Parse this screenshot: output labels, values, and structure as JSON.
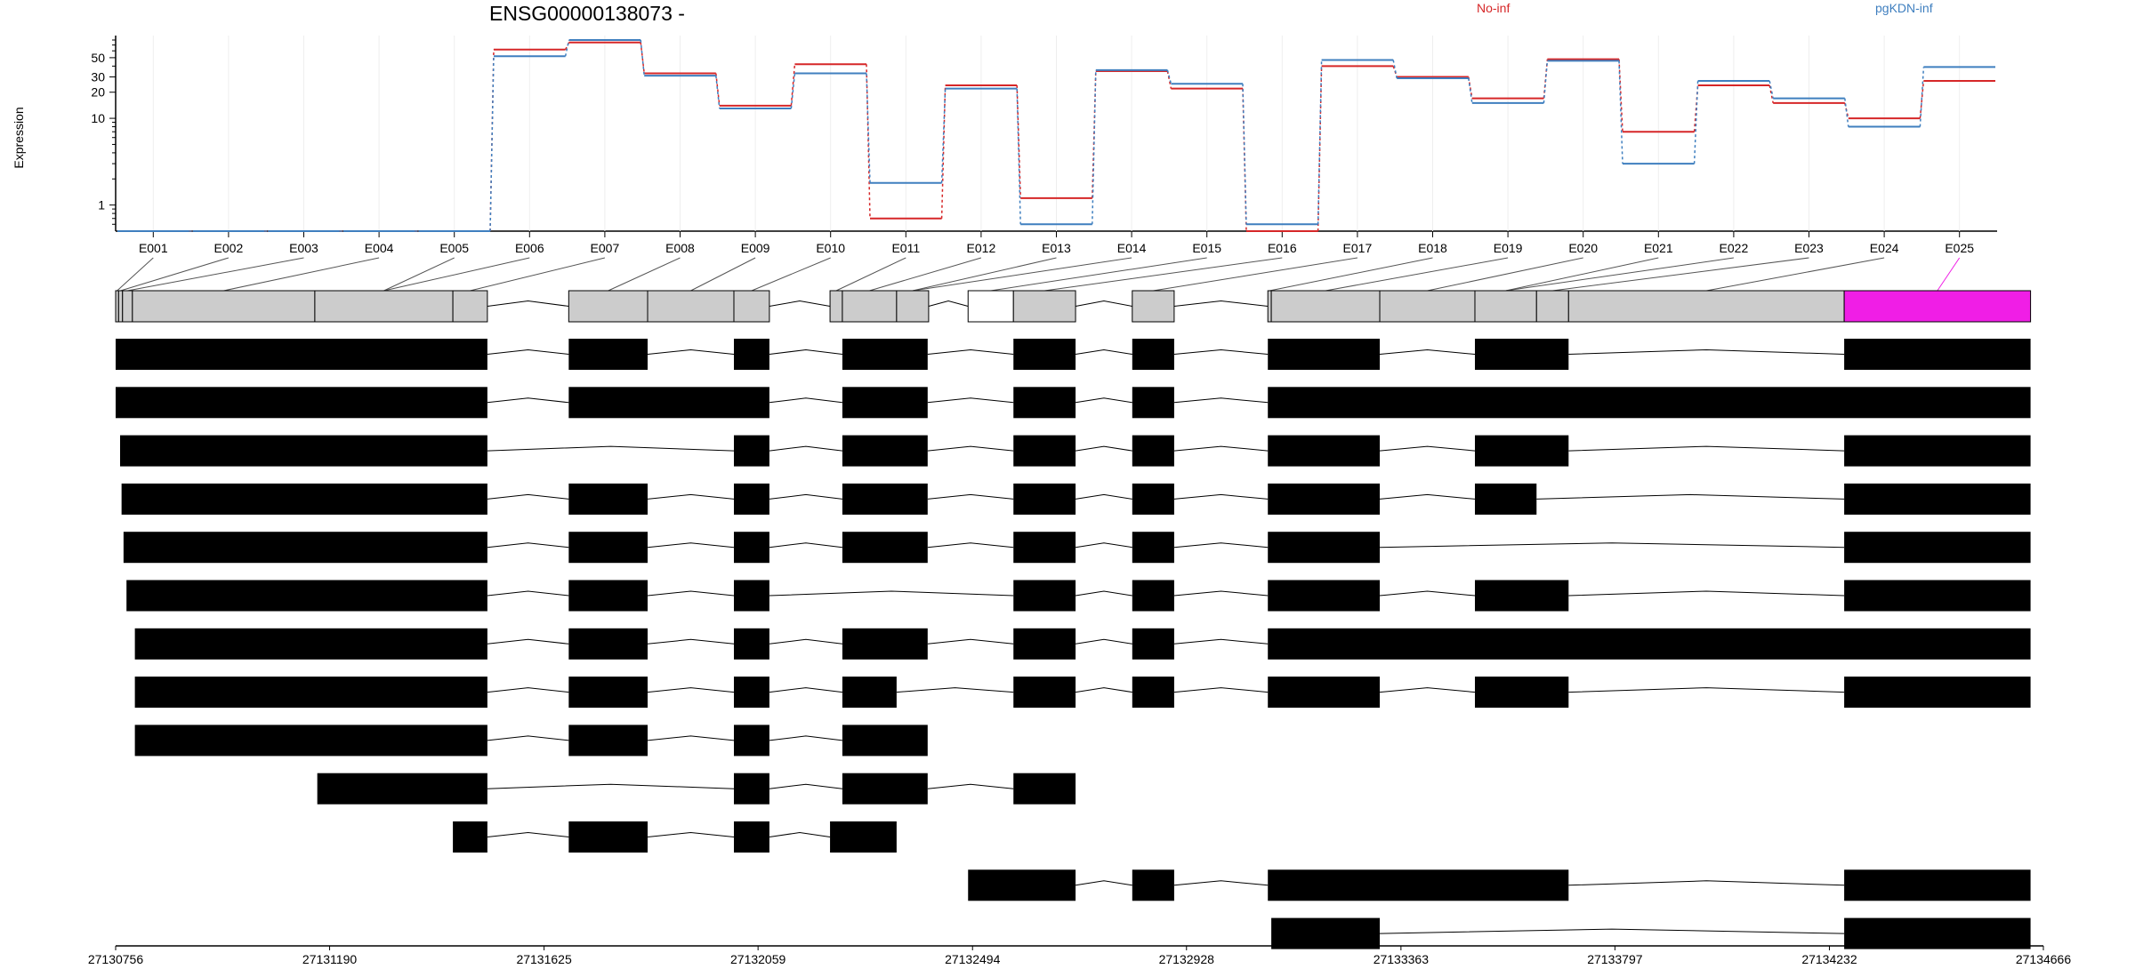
{
  "chart_data": {
    "type": "line",
    "title": "ENSG00000138073 -",
    "ylabel": "Expression",
    "xlabel": "",
    "y_scale": "log",
    "ylim": [
      0.5,
      90
    ],
    "y_ticks": [
      1,
      10,
      20,
      30,
      50
    ],
    "grid": "vertical, light",
    "legend_placement": "top",
    "colors": {
      "No-inf": "#d62728",
      "pgKDN-inf": "#3f7fbf",
      "highlight": "#f01ee6"
    },
    "categories": [
      "E001",
      "E002",
      "E003",
      "E004",
      "E005",
      "E006",
      "E007",
      "E008",
      "E009",
      "E010",
      "E011",
      "E012",
      "E013",
      "E014",
      "E015",
      "E016",
      "E017",
      "E018",
      "E019",
      "E020",
      "E021",
      "E022",
      "E023",
      "E024",
      "E025"
    ],
    "series": [
      {
        "name": "No-inf",
        "values": [
          0.5,
          0.5,
          0.5,
          0.5,
          0.5,
          62,
          75,
          33,
          14,
          42,
          0.7,
          24,
          1.2,
          35,
          22,
          0.5,
          40,
          30,
          17,
          48,
          7,
          24,
          15,
          10,
          27
        ]
      },
      {
        "name": "pgKDN-inf",
        "values": [
          0.5,
          0.5,
          0.5,
          0.5,
          0.5,
          52,
          80,
          31,
          13,
          33,
          1.8,
          22,
          0.6,
          36,
          25,
          0.6,
          47,
          29,
          15,
          46,
          3,
          27,
          17,
          8,
          39
        ]
      }
    ],
    "genomic_axis": {
      "ticks": [
        "27130756",
        "27131190",
        "27131625",
        "27132059",
        "27132494",
        "27132928",
        "27133363",
        "27133797",
        "27134232",
        "27134666"
      ],
      "min": 27130756,
      "max": 27134666
    },
    "gene_model": {
      "exons": [
        [
          27130756,
          27130762
        ],
        [
          27130762,
          27130770
        ],
        [
          27130770,
          27130790
        ],
        [
          27130790,
          27131160
        ],
        [
          27131160,
          27131440
        ],
        [
          27131440,
          27131510
        ],
        [
          27131675,
          27131835
        ],
        [
          27131835,
          27132010
        ],
        [
          27132010,
          27132082
        ],
        [
          27132205,
          27132230
        ],
        [
          27132230,
          27132340
        ],
        [
          27132340,
          27132405
        ],
        [
          27132485,
          27132577
        ],
        [
          27132577,
          27132703
        ],
        [
          27132818,
          27132903
        ],
        [
          27133093,
          27133100
        ],
        [
          27133100,
          27133320
        ],
        [
          27133320,
          27133513
        ],
        [
          27133513,
          27133638
        ],
        [
          27133638,
          27133703
        ],
        [
          27133703,
          27134262
        ],
        [
          27134262,
          27134640
        ]
      ],
      "exon_labels_map": [
        1,
        2,
        3,
        4,
        5,
        6,
        7,
        8,
        9,
        10,
        11,
        12,
        13,
        14,
        15,
        16,
        17,
        18,
        19,
        20,
        21,
        22,
        23,
        24,
        25
      ],
      "white_exon_range": [
        27132485,
        27132577
      ],
      "highlight_range": [
        27134262,
        27134640
      ]
    },
    "transcripts": [
      [
        [
          27130756,
          27131510
        ],
        [
          27131675,
          27131835
        ],
        [
          27132010,
          27132082
        ],
        [
          27132230,
          27132403
        ],
        [
          27132577,
          27132703
        ],
        [
          27132818,
          27132903
        ],
        [
          27133093,
          27133320
        ],
        [
          27133513,
          27133703
        ],
        [
          27134262,
          27134640
        ]
      ],
      [
        [
          27130756,
          27131510
        ],
        [
          27131675,
          27132082
        ],
        [
          27132230,
          27132403
        ],
        [
          27132577,
          27132703
        ],
        [
          27132818,
          27132903
        ],
        [
          27133093,
          27134640
        ]
      ],
      [
        [
          27130765,
          27131510
        ],
        [
          27132010,
          27132082
        ],
        [
          27132230,
          27132403
        ],
        [
          27132577,
          27132703
        ],
        [
          27132818,
          27132903
        ],
        [
          27133093,
          27133320
        ],
        [
          27133513,
          27133703
        ],
        [
          27134262,
          27134640
        ]
      ],
      [
        [
          27130768,
          27131510
        ],
        [
          27131675,
          27131835
        ],
        [
          27132010,
          27132082
        ],
        [
          27132230,
          27132403
        ],
        [
          27132577,
          27132703
        ],
        [
          27132818,
          27132903
        ],
        [
          27133093,
          27133320
        ],
        [
          27133513,
          27133638
        ],
        [
          27134262,
          27134640
        ]
      ],
      [
        [
          27130772,
          27131510
        ],
        [
          27131675,
          27131835
        ],
        [
          27132010,
          27132082
        ],
        [
          27132230,
          27132403
        ],
        [
          27132577,
          27132703
        ],
        [
          27132818,
          27132903
        ],
        [
          27133093,
          27133320
        ],
        [
          27134262,
          27134640
        ]
      ],
      [
        [
          27130778,
          27131510
        ],
        [
          27131675,
          27131835
        ],
        [
          27132010,
          27132082
        ],
        [
          27132577,
          27132703
        ],
        [
          27132818,
          27132903
        ],
        [
          27133093,
          27133320
        ],
        [
          27133513,
          27133703
        ],
        [
          27134262,
          27134640
        ]
      ],
      [
        [
          27130795,
          27131510
        ],
        [
          27131675,
          27131835
        ],
        [
          27132010,
          27132082
        ],
        [
          27132230,
          27132403
        ],
        [
          27132577,
          27132703
        ],
        [
          27132818,
          27132903
        ],
        [
          27133093,
          27134640
        ]
      ],
      [
        [
          27130795,
          27131510
        ],
        [
          27131675,
          27131835
        ],
        [
          27132010,
          27132082
        ],
        [
          27132230,
          27132340
        ],
        [
          27132577,
          27132703
        ],
        [
          27132818,
          27132903
        ],
        [
          27133093,
          27133320
        ],
        [
          27133513,
          27133703
        ],
        [
          27134262,
          27134640
        ]
      ],
      [
        [
          27130795,
          27131510
        ],
        [
          27131675,
          27131835
        ],
        [
          27132010,
          27132082
        ],
        [
          27132230,
          27132403
        ]
      ],
      [
        [
          27131165,
          27131510
        ],
        [
          27132010,
          27132082
        ],
        [
          27132230,
          27132403
        ],
        [
          27132577,
          27132703
        ]
      ],
      [
        [
          27131440,
          27131510
        ],
        [
          27131675,
          27131835
        ],
        [
          27132010,
          27132082
        ],
        [
          27132205,
          27132340
        ]
      ],
      [
        [
          27132485,
          27132703
        ],
        [
          27132818,
          27132903
        ],
        [
          27133093,
          27133703
        ],
        [
          27134262,
          27134640
        ]
      ],
      [
        [
          27133100,
          27133320
        ],
        [
          27134262,
          27134640
        ]
      ]
    ]
  }
}
